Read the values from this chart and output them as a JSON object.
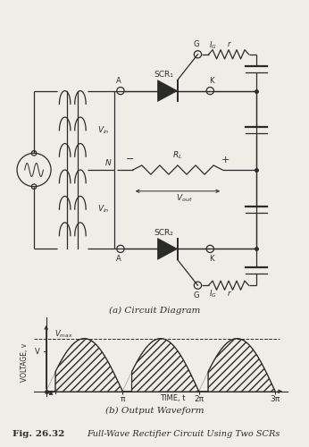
{
  "fig_label": "Fig. 26.32",
  "fig_caption": "Full-Wave Rectifier Circuit Using Two SCRs",
  "sub_a": "(a) Circuit Diagram",
  "sub_b": "(b) Output Waveform",
  "bg_color": "#f0ede8",
  "line_color": "#2a2a2a",
  "alpha_val": 0.38
}
